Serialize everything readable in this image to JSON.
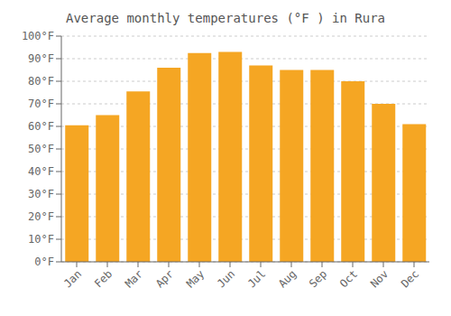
{
  "chart_data": {
    "type": "bar",
    "title": "Average monthly temperatures (°F ) in Rura",
    "categories": [
      "Jan",
      "Feb",
      "Mar",
      "Apr",
      "May",
      "Jun",
      "Jul",
      "Aug",
      "Sep",
      "Oct",
      "Nov",
      "Dec"
    ],
    "values": [
      60.5,
      65,
      75.5,
      86,
      92.5,
      93,
      87,
      85,
      85,
      80,
      70,
      61
    ],
    "color": "#F5A623",
    "ylim": [
      0,
      100
    ],
    "yticks": [
      {
        "value": 0,
        "label": "0°F"
      },
      {
        "value": 10,
        "label": "10°F"
      },
      {
        "value": 20,
        "label": "20°F"
      },
      {
        "value": 30,
        "label": "30°F"
      },
      {
        "value": 40,
        "label": "40°F"
      },
      {
        "value": 50,
        "label": "50°F"
      },
      {
        "value": 60,
        "label": "60°F"
      },
      {
        "value": 70,
        "label": "70°F"
      },
      {
        "value": 80,
        "label": "80°F"
      },
      {
        "value": 90,
        "label": "90°F"
      },
      {
        "value": 100,
        "label": "100°F"
      }
    ],
    "grid": true
  }
}
